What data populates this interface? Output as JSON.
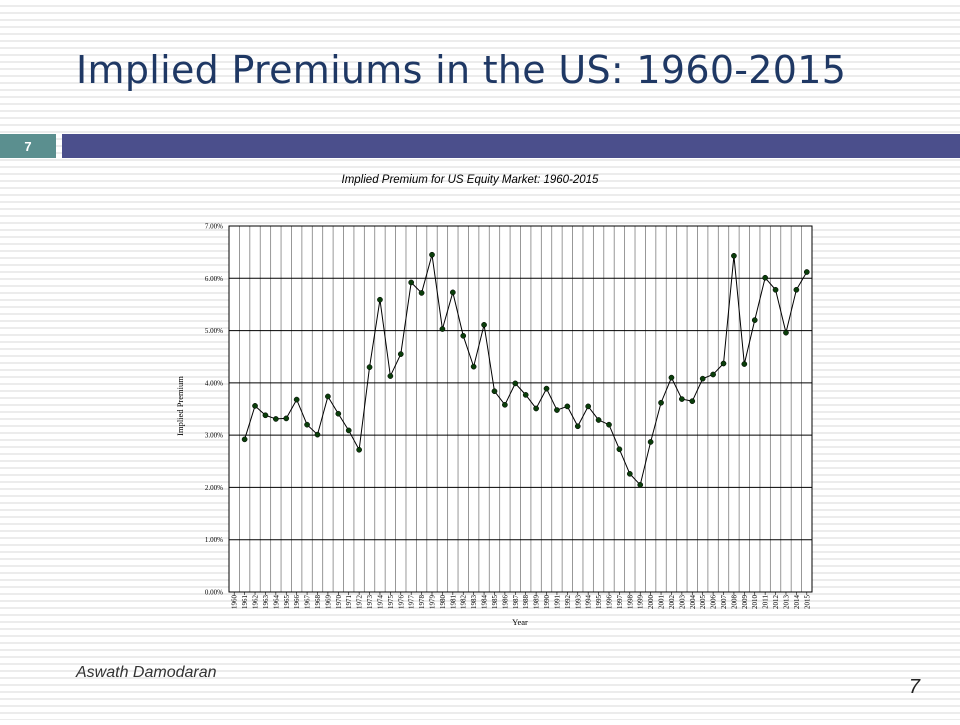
{
  "slide": {
    "title": "Implied Premiums in the US: 1960-2015",
    "badge_number": "7",
    "author": "Aswath Damodaran",
    "page_number": "7"
  },
  "colors": {
    "title_text": "#1f3864",
    "badge": "#5b8f8f",
    "title_bar": "#4b4f8c",
    "series_line": "#000000",
    "marker": "#0a3d0a"
  },
  "chart_data": {
    "type": "line",
    "title": "Implied Premium for US Equity Market: 1960-2015",
    "xlabel": "Year",
    "ylabel": "Implied Premium",
    "ylim": [
      0,
      0.07
    ],
    "y_ticks": [
      "0.00%",
      "1.00%",
      "2.00%",
      "3.00%",
      "4.00%",
      "5.00%",
      "6.00%",
      "7.00%"
    ],
    "y_tick_values": [
      0,
      0.01,
      0.02,
      0.03,
      0.04,
      0.05,
      0.06,
      0.07
    ],
    "grid": true,
    "legend": "none",
    "categories": [
      "1960",
      "1961",
      "1962",
      "1963",
      "1964",
      "1965",
      "1966",
      "1967",
      "1968",
      "1969",
      "1970",
      "1971",
      "1972",
      "1973",
      "1974",
      "1975",
      "1976",
      "1977",
      "1978",
      "1979",
      "1980",
      "1981",
      "1982",
      "1983",
      "1984",
      "1985",
      "1986",
      "1987",
      "1988",
      "1989",
      "1990",
      "1991",
      "1992",
      "1993",
      "1994",
      "1995",
      "1996",
      "1997",
      "1998",
      "1999",
      "2000",
      "2001",
      "2002",
      "2003",
      "2004",
      "2005",
      "2006",
      "2007",
      "2008",
      "2009",
      "2010",
      "2011",
      "2012",
      "2013",
      "2014",
      "2015"
    ],
    "series": [
      {
        "values": [
          null,
          0.0292,
          0.0356,
          0.0338,
          0.0331,
          0.0332,
          0.0368,
          0.032,
          0.0301,
          0.0374,
          0.0341,
          0.0309,
          0.0272,
          0.043,
          0.0559,
          0.0413,
          0.0455,
          0.0592,
          0.0572,
          0.0645,
          0.0503,
          0.0573,
          0.049,
          0.0431,
          0.0511,
          0.0384,
          0.0358,
          0.0399,
          0.0377,
          0.0351,
          0.0389,
          0.0348,
          0.0355,
          0.0317,
          0.0355,
          0.0329,
          0.032,
          0.0273,
          0.0226,
          0.0205,
          0.0287,
          0.0362,
          0.041,
          0.0369,
          0.0365,
          0.0408,
          0.0416,
          0.0437,
          0.0643,
          0.0436,
          0.052,
          0.0601,
          0.0578,
          0.0496,
          0.0578,
          0.0612
        ]
      }
    ]
  }
}
